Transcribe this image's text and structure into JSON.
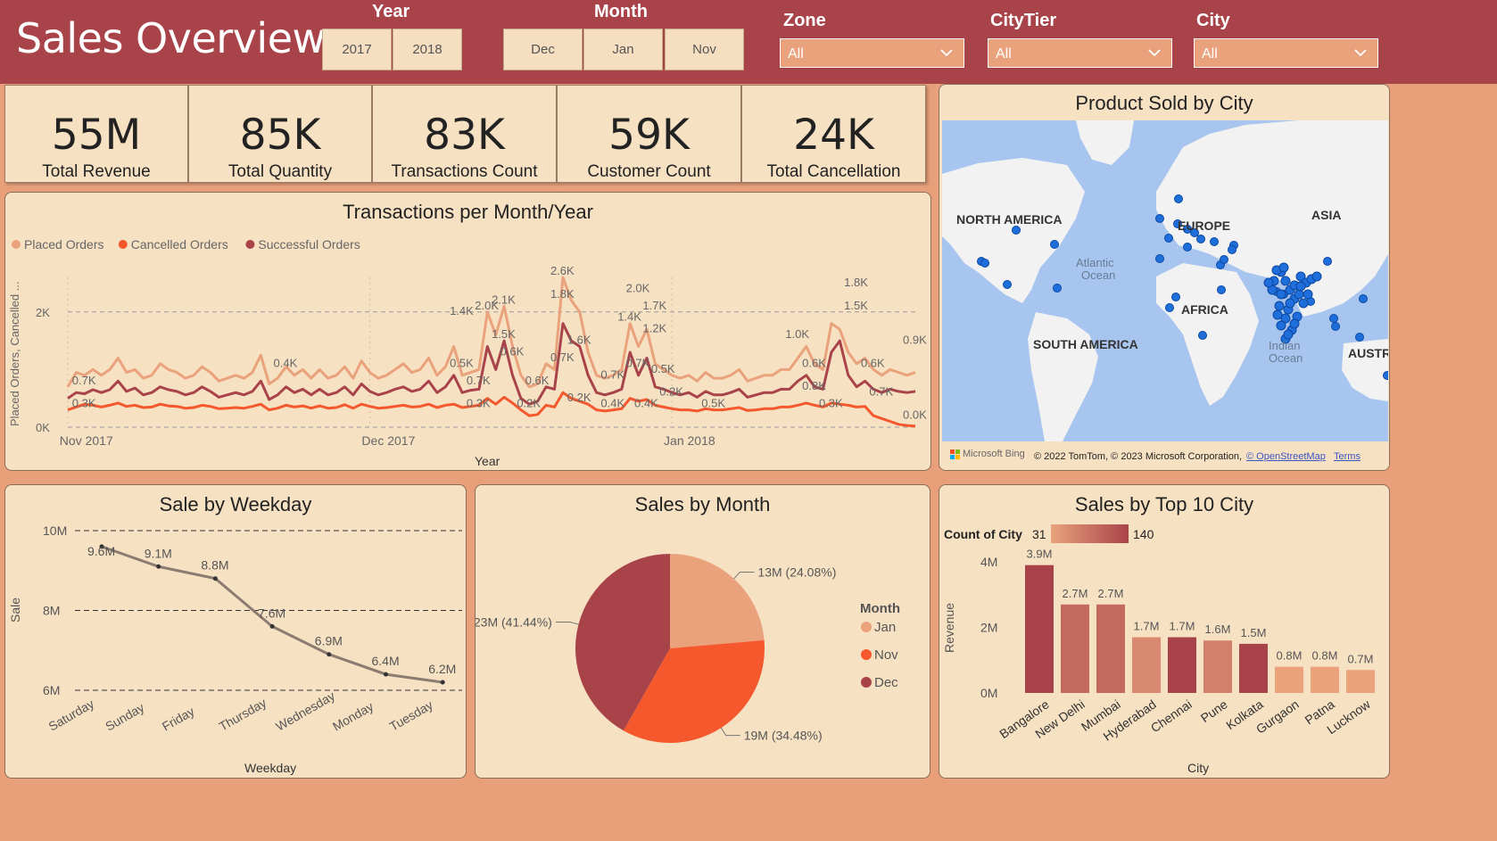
{
  "header": {
    "title": "Sales Overview"
  },
  "slicers": {
    "year": {
      "title": "Year",
      "options": [
        "2017",
        "2018"
      ]
    },
    "month": {
      "title": "Month",
      "options": [
        "Dec",
        "Jan",
        "Nov"
      ]
    },
    "zone": {
      "title": "Zone",
      "value": "All"
    },
    "citytier": {
      "title": "CityTier",
      "value": "All"
    },
    "city": {
      "title": "City",
      "value": "All"
    }
  },
  "kpis": [
    {
      "value": "55M",
      "label": "Total Revenue"
    },
    {
      "value": "85K",
      "label": "Total Quantity"
    },
    {
      "value": "83K",
      "label": "Transactions Count"
    },
    {
      "value": "59K",
      "label": "Customer Count"
    },
    {
      "value": "24K",
      "label": "Total Cancellation"
    }
  ],
  "map": {
    "title": "Product Sold by City",
    "labels": [
      "NORTH AMERICA",
      "EUROPE",
      "ASIA",
      "Atlantic",
      "Ocean",
      "AFRICA",
      "SOUTH AMERICA",
      "Indian",
      "Ocean",
      "AUSTR"
    ],
    "brand": "Microsoft Bing",
    "copyright": "© 2022 TomTom, © 2023 Microsoft Corporation,",
    "osm": "© OpenStreetMap",
    "terms": "Terms",
    "colors": {
      "water": "#a7c5ef",
      "land": "#f2f2f2",
      "dot": "#1e6fdc"
    }
  },
  "colors": {
    "placed": "#e9a27c",
    "cancelled": "#f5582c",
    "successful": "#a9434a",
    "line": "#8b7b70"
  },
  "chart_data": [
    {
      "id": "transactions",
      "type": "line",
      "title": "Transactions per Month/Year",
      "xlabel": "Year",
      "ylabel": "Placed Orders, Cancelled ...",
      "xticks": [
        "Nov 2017",
        "Dec 2017",
        "Jan 2018"
      ],
      "yticks": [
        "0K",
        "2K"
      ],
      "ylim": [
        0,
        2600
      ],
      "grid": true,
      "legend": "top-left",
      "series": [
        {
          "name": "Placed Orders",
          "color": "#e9a27c",
          "values": [
            700,
            950,
            900,
            1000,
            900,
            1000,
            1200,
            950,
            1000,
            850,
            900,
            1100,
            1000,
            950,
            850,
            900,
            1050,
            950,
            800,
            850,
            900,
            850,
            950,
            1250,
            750,
            850,
            1050,
            900,
            1000,
            850,
            1000,
            850,
            900,
            1050,
            850,
            1150,
            950,
            850,
            900,
            1000,
            1100,
            950,
            1000,
            1200,
            900,
            1050,
            1400,
            900,
            950,
            1000,
            2000,
            1600,
            2100,
            1400,
            900,
            700,
            750,
            1100,
            1000,
            2600,
            2200,
            2000,
            1300,
            900,
            850,
            900,
            1000,
            1800,
            1400,
            1700,
            1100,
            1000,
            900,
            850,
            900,
            800,
            950,
            850,
            850,
            900,
            1000,
            800,
            850,
            900,
            900,
            1000,
            1000,
            1200,
            1400,
            1100,
            1000,
            1800,
            1700,
            1300,
            1100,
            1200,
            1000,
            900,
            1000,
            950,
            900,
            950
          ]
        },
        {
          "name": "Cancelled Orders",
          "color": "#f5582c",
          "values": [
            300,
            350,
            400,
            380,
            350,
            380,
            420,
            360,
            380,
            340,
            350,
            400,
            370,
            360,
            330,
            340,
            380,
            360,
            320,
            330,
            340,
            330,
            360,
            400,
            300,
            330,
            380,
            350,
            370,
            330,
            370,
            330,
            340,
            390,
            330,
            400,
            360,
            330,
            340,
            360,
            380,
            350,
            360,
            400,
            340,
            380,
            400,
            340,
            360,
            380,
            500,
            400,
            520,
            420,
            300,
            200,
            220,
            380,
            350,
            600,
            500,
            450,
            400,
            300,
            280,
            300,
            320,
            500,
            450,
            480,
            380,
            350,
            320,
            300,
            300,
            280,
            320,
            300,
            300,
            320,
            340,
            290,
            300,
            320,
            320,
            350,
            350,
            380,
            420,
            380,
            350,
            420,
            400,
            380,
            350,
            360,
            200,
            150,
            100,
            50,
            30,
            20
          ]
        },
        {
          "name": "Successful Orders",
          "color": "#a9434a",
          "values": [
            500,
            600,
            580,
            650,
            600,
            650,
            800,
            620,
            680,
            560,
            600,
            700,
            650,
            620,
            560,
            600,
            700,
            620,
            520,
            560,
            600,
            560,
            620,
            800,
            480,
            560,
            700,
            600,
            660,
            560,
            660,
            560,
            600,
            700,
            560,
            750,
            620,
            560,
            600,
            660,
            700,
            620,
            660,
            800,
            600,
            700,
            900,
            600,
            640,
            660,
            1400,
            1000,
            1500,
            900,
            500,
            400,
            450,
            700,
            660,
            1800,
            1500,
            1400,
            900,
            600,
            560,
            600,
            660,
            1300,
            900,
            1200,
            700,
            660,
            600,
            560,
            600,
            520,
            620,
            560,
            560,
            600,
            660,
            520,
            560,
            600,
            600,
            660,
            660,
            800,
            900,
            700,
            660,
            1300,
            1500,
            900,
            700,
            800,
            660,
            600,
            660,
            620,
            600,
            620
          ]
        }
      ],
      "data_labels": [
        {
          "text": "0.7K",
          "x": 2,
          "y": 700
        },
        {
          "text": "0.3K",
          "x": 2,
          "y": 300
        },
        {
          "text": "0.4K",
          "x": 26,
          "y": 1000
        },
        {
          "text": "0.5K",
          "x": 47,
          "y": 1000
        },
        {
          "text": "1.4K",
          "x": 47,
          "y": 1900
        },
        {
          "text": "2.0K",
          "x": 50,
          "y": 2000
        },
        {
          "text": "0.7K",
          "x": 49,
          "y": 700
        },
        {
          "text": "0.3K",
          "x": 49,
          "y": 300
        },
        {
          "text": "2.1K",
          "x": 52,
          "y": 2100
        },
        {
          "text": "1.5K",
          "x": 52,
          "y": 1500
        },
        {
          "text": "0.6K",
          "x": 53,
          "y": 1200
        },
        {
          "text": "0.6K",
          "x": 56,
          "y": 700
        },
        {
          "text": "0.2K",
          "x": 55,
          "y": 300
        },
        {
          "text": "2.6K",
          "x": 59,
          "y": 2600
        },
        {
          "text": "1.8K",
          "x": 59,
          "y": 2200
        },
        {
          "text": "1.6K",
          "x": 61,
          "y": 1400
        },
        {
          "text": "0.7K",
          "x": 59,
          "y": 1100
        },
        {
          "text": "0.2K",
          "x": 61,
          "y": 400
        },
        {
          "text": "0.7K",
          "x": 65,
          "y": 800
        },
        {
          "text": "0.4K",
          "x": 65,
          "y": 300
        },
        {
          "text": "2.0K",
          "x": 68,
          "y": 2300
        },
        {
          "text": "1.4K",
          "x": 67,
          "y": 1800
        },
        {
          "text": "1.7K",
          "x": 70,
          "y": 2000
        },
        {
          "text": "1.2K",
          "x": 70,
          "y": 1600
        },
        {
          "text": "0.7K",
          "x": 68,
          "y": 1000
        },
        {
          "text": "0.5K",
          "x": 71,
          "y": 900
        },
        {
          "text": "0.2K",
          "x": 72,
          "y": 500
        },
        {
          "text": "0.4K",
          "x": 69,
          "y": 300
        },
        {
          "text": "0.5K",
          "x": 77,
          "y": 300
        },
        {
          "text": "1.0K",
          "x": 87,
          "y": 1500
        },
        {
          "text": "0.6K",
          "x": 89,
          "y": 1000
        },
        {
          "text": "0.8K",
          "x": 89,
          "y": 600
        },
        {
          "text": "0.3K",
          "x": 91,
          "y": 300
        },
        {
          "text": "1.8K",
          "x": 94,
          "y": 2400
        },
        {
          "text": "1.5K",
          "x": 94,
          "y": 2000
        },
        {
          "text": "0.6K",
          "x": 96,
          "y": 1000
        },
        {
          "text": "0.7K",
          "x": 97,
          "y": 500
        },
        {
          "text": "0.9K",
          "x": 101,
          "y": 1400
        },
        {
          "text": "0.0K",
          "x": 101,
          "y": 100
        }
      ]
    },
    {
      "id": "weekday",
      "type": "line",
      "title": "Sale by Weekday",
      "xlabel": "Weekday",
      "ylabel": "Sale",
      "categories": [
        "Saturday",
        "Sunday",
        "Friday",
        "Thursday",
        "Wednesday",
        "Monday",
        "Tuesday"
      ],
      "values": [
        9.6,
        9.1,
        8.8,
        7.6,
        6.9,
        6.4,
        6.2
      ],
      "labels": [
        "9.6M",
        "9.1M",
        "8.8M",
        "7.6M",
        "6.9M",
        "6.4M",
        "6.2M"
      ],
      "yticks": [
        "6M",
        "8M",
        "10M"
      ],
      "ylim": [
        6,
        10
      ],
      "grid": true
    },
    {
      "id": "month",
      "type": "pie",
      "title": "Sales by Month",
      "legend_title": "Month",
      "slices": [
        {
          "name": "Jan",
          "value": 13,
          "label": "13M (24.08%)",
          "color": "#e9a27c"
        },
        {
          "name": "Nov",
          "value": 19,
          "label": "19M (34.48%)",
          "color": "#f5582c"
        },
        {
          "name": "Dec",
          "value": 23,
          "label": "23M (41.44%)",
          "color": "#a9434a"
        }
      ],
      "legend": "right"
    },
    {
      "id": "city",
      "type": "bar",
      "title": "Sales by Top 10 City",
      "xlabel": "City",
      "ylabel": "Revenue",
      "categories": [
        "Bangalore",
        "New Delhi",
        "Mumbai",
        "Hyderabad",
        "Chennai",
        "Pune",
        "Kolkata",
        "Gurgaon",
        "Patna",
        "Lucknow"
      ],
      "values": [
        3.9,
        2.7,
        2.7,
        1.7,
        1.7,
        1.6,
        1.5,
        0.8,
        0.8,
        0.7
      ],
      "labels": [
        "3.9M",
        "2.7M",
        "2.7M",
        "1.7M",
        "1.7M",
        "1.6M",
        "1.5M",
        "0.8M",
        "0.8M",
        "0.7M"
      ],
      "counts": [
        140,
        95,
        95,
        60,
        140,
        70,
        140,
        31,
        31,
        31
      ],
      "yticks": [
        "0M",
        "2M",
        "4M"
      ],
      "ylim": [
        0,
        4
      ],
      "color_legend": {
        "title": "Count of City",
        "min": "31",
        "max": "140",
        "from": "#e9a27c",
        "to": "#a9434a"
      }
    }
  ]
}
